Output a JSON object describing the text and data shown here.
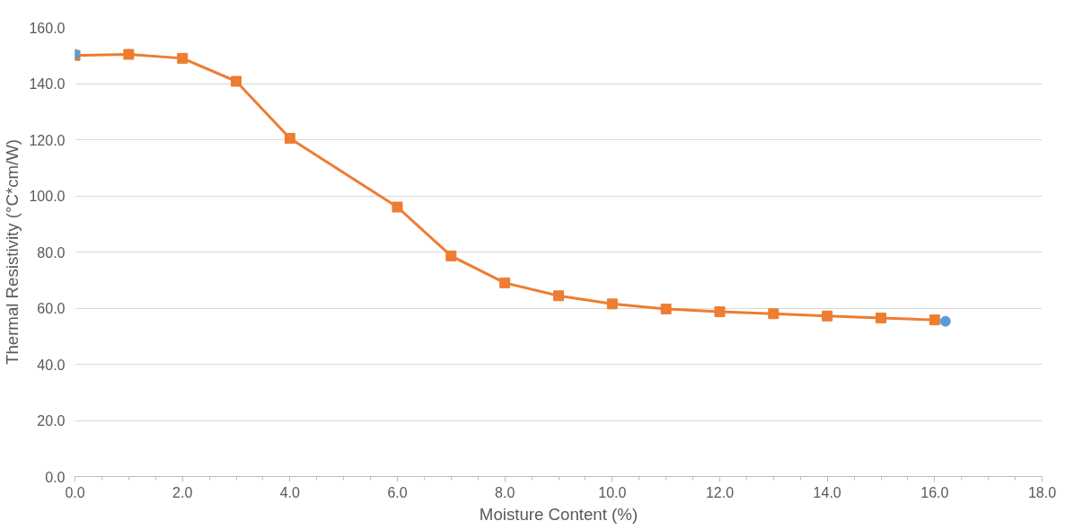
{
  "chart_data": {
    "type": "line",
    "xlabel": "Moisture Content (%)",
    "ylabel": "Thermal Resistivity (°C*cm/W)",
    "xlim": [
      0,
      18
    ],
    "ylim": [
      0,
      160
    ],
    "xticks": [
      {
        "value": 0,
        "label": "0.0"
      },
      {
        "value": 2,
        "label": "2.0"
      },
      {
        "value": 4,
        "label": "4.0"
      },
      {
        "value": 6,
        "label": "6.0"
      },
      {
        "value": 8,
        "label": "8.0"
      },
      {
        "value": 10,
        "label": "10.0"
      },
      {
        "value": 12,
        "label": "12.0"
      },
      {
        "value": 14,
        "label": "14.0"
      },
      {
        "value": 16,
        "label": "16.0"
      },
      {
        "value": 18,
        "label": "18.0"
      }
    ],
    "yticks": [
      {
        "value": 0,
        "label": "0.0"
      },
      {
        "value": 20,
        "label": "20.0"
      },
      {
        "value": 40,
        "label": "40.0"
      },
      {
        "value": 60,
        "label": "60.0"
      },
      {
        "value": 80,
        "label": "80.0"
      },
      {
        "value": 100,
        "label": "100.0"
      },
      {
        "value": 120,
        "label": "120.0"
      },
      {
        "value": 140,
        "label": "140.0"
      },
      {
        "value": 160,
        "label": "160.0"
      }
    ],
    "grid": "y",
    "series": [
      {
        "color": "#ed7d31",
        "marker": "square",
        "x": [
          0,
          1,
          2,
          3,
          4,
          6,
          7,
          8,
          9,
          10,
          11,
          12,
          13,
          14,
          15,
          16
        ],
        "values": [
          150.0,
          150.4,
          149.0,
          140.8,
          120.5,
          96.0,
          78.6,
          69.0,
          64.4,
          61.5,
          59.7,
          58.7,
          58.0,
          57.2,
          56.5,
          55.8
        ]
      },
      {
        "type": "scatter",
        "color": "#5b9bd5",
        "marker": "circle",
        "x": [
          0,
          16.2
        ],
        "values": [
          150.4,
          55.3
        ]
      }
    ]
  }
}
